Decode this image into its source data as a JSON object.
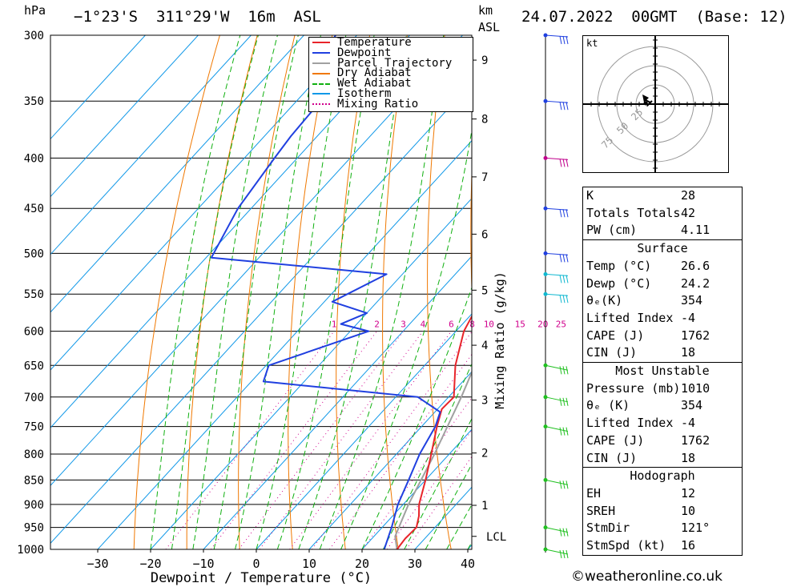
{
  "header": {
    "unit_hpa": "hPa",
    "location": "−1°23'S  311°29'W  16m  ASL",
    "unit_km": "km",
    "unit_asl": "ASL",
    "datetime": "24.07.2022  00GMT  (Base: 12)"
  },
  "chart_data": {
    "type": "skewt",
    "pressure_levels": [
      300,
      350,
      400,
      450,
      500,
      550,
      600,
      650,
      700,
      750,
      800,
      850,
      900,
      950,
      1000
    ],
    "pressure_range": [
      300,
      1000
    ],
    "temp_range_at_bottom": [
      -40,
      40
    ],
    "x_ticks": [
      -30,
      -20,
      -10,
      0,
      10,
      20,
      30,
      40
    ],
    "xlabel": "Dewpoint / Temperature (°C)",
    "km_ticks": [
      {
        "km": 1,
        "p": 902
      },
      {
        "km": 2,
        "p": 798
      },
      {
        "km": 3,
        "p": 705
      },
      {
        "km": 4,
        "p": 620
      },
      {
        "km": 5,
        "p": 545
      },
      {
        "km": 6,
        "p": 478
      },
      {
        "km": 7,
        "p": 418
      },
      {
        "km": 8,
        "p": 365
      },
      {
        "km": 9,
        "p": 318
      }
    ],
    "lcl_label": "LCL",
    "lcl_pressure": 970,
    "mixing_ratio_label": "Mixing Ratio (g/kg)",
    "mixing_ratios": [
      1,
      2,
      3,
      4,
      6,
      8,
      10,
      15,
      20,
      25
    ],
    "legend": [
      "Temperature",
      "Dewpoint",
      "Parcel Trajectory",
      "Dry Adiabat",
      "Wet Adiabat",
      "Isotherm",
      "Mixing Ratio"
    ],
    "colors": {
      "temperature": "#e8242a",
      "dewpoint": "#2040e0",
      "parcel": "#a0a0a0",
      "dry_adiabat": "#f07800",
      "wet_adiabat": "#10b010",
      "isotherm": "#1098e8",
      "mixing_ratio": "#d0008c"
    },
    "temperature": [
      {
        "p": 1000,
        "t": 26.6
      },
      {
        "p": 975,
        "t": 26.3
      },
      {
        "p": 950,
        "t": 26.5
      },
      {
        "p": 925,
        "t": 25.0
      },
      {
        "p": 900,
        "t": 23.0
      },
      {
        "p": 850,
        "t": 20.0
      },
      {
        "p": 800,
        "t": 16.6
      },
      {
        "p": 750,
        "t": 12.9
      },
      {
        "p": 720,
        "t": 10.8
      },
      {
        "p": 700,
        "t": 11.0
      },
      {
        "p": 650,
        "t": 5.8
      },
      {
        "p": 600,
        "t": 1.5
      },
      {
        "p": 575,
        "t": 0.2
      },
      {
        "p": 550,
        "t": -2.1
      },
      {
        "p": 525,
        "t": -5.8
      },
      {
        "p": 505,
        "t": -6.5
      },
      {
        "p": 500,
        "t": -7.0
      },
      {
        "p": 450,
        "t": -11.0
      },
      {
        "p": 400,
        "t": -19.2
      },
      {
        "p": 380,
        "t": -22.8
      },
      {
        "p": 360,
        "t": -23.6
      }
    ],
    "dewpoint": [
      {
        "p": 1000,
        "t": 24.2
      },
      {
        "p": 950,
        "t": 21.8
      },
      {
        "p": 900,
        "t": 19.0
      },
      {
        "p": 850,
        "t": 16.8
      },
      {
        "p": 800,
        "t": 14.4
      },
      {
        "p": 750,
        "t": 12.6
      },
      {
        "p": 725,
        "t": 11.0
      },
      {
        "p": 700,
        "t": 4.2
      },
      {
        "p": 675,
        "t": -27.7
      },
      {
        "p": 650,
        "t": -29.5
      },
      {
        "p": 600,
        "t": -16.5
      },
      {
        "p": 590,
        "t": -23.0
      },
      {
        "p": 575,
        "t": -20.0
      },
      {
        "p": 560,
        "t": -28.5
      },
      {
        "p": 525,
        "t": -23.0
      },
      {
        "p": 505,
        "t": -59.0
      },
      {
        "p": 450,
        "t": -62.5
      },
      {
        "p": 400,
        "t": -64.3
      },
      {
        "p": 380,
        "t": -65.0
      },
      {
        "p": 355,
        "t": -65.4
      },
      {
        "p": 330,
        "t": -69.0
      },
      {
        "p": 320,
        "t": -72.4
      },
      {
        "p": 300,
        "t": -74.0
      }
    ],
    "parcel": [
      {
        "p": 1000,
        "t": 26.6
      },
      {
        "p": 970,
        "t": 24.0
      },
      {
        "p": 900,
        "t": 21.0
      },
      {
        "p": 800,
        "t": 17.2
      },
      {
        "p": 700,
        "t": 12.4
      },
      {
        "p": 600,
        "t": 6.3
      },
      {
        "p": 500,
        "t": -2.1
      },
      {
        "p": 450,
        "t": -7.8
      },
      {
        "p": 400,
        "t": -14.8
      },
      {
        "p": 380,
        "t": -18.5
      },
      {
        "p": 360,
        "t": -22.5
      }
    ],
    "wind_levels": [
      300,
      350,
      400,
      450,
      500,
      525,
      550,
      650,
      700,
      750,
      850,
      950,
      1000
    ]
  },
  "hodograph": {
    "unit": "kt",
    "ring_labels": [
      "25",
      "50",
      "75"
    ]
  },
  "indices": {
    "k_label": "K",
    "k": "28",
    "tt_label": "Totals Totals",
    "tt": "42",
    "pw_label": "PW (cm)",
    "pw": "4.11"
  },
  "surface": {
    "title": "Surface",
    "temp_label": "Temp (°C)",
    "temp": "26.6",
    "dewp_label": "Dewp (°C)",
    "dewp": "24.2",
    "theta_label": "θₑ(K)",
    "theta": "354",
    "li_label": "Lifted Index",
    "li": "-4",
    "cape_label": "CAPE (J)",
    "cape": "1762",
    "cin_label": "CIN (J)",
    "cin": "18"
  },
  "most_unstable": {
    "title": "Most Unstable",
    "pressure_label": "Pressure (mb)",
    "pressure": "1010",
    "theta_label": "θₑ (K)",
    "theta": "354",
    "li_label": "Lifted Index",
    "li": "-4",
    "cape_label": "CAPE (J)",
    "cape": "1762",
    "cin_label": "CIN (J)",
    "cin": "18"
  },
  "hodograph_params": {
    "title": "Hodograph",
    "eh_label": "EH",
    "eh": "12",
    "sreh_label": "SREH",
    "sreh": "10",
    "stmdir_label": "StmDir",
    "stmdir": "121°",
    "stmspd_label": "StmSpd (kt)",
    "stmspd": "16"
  },
  "footer": {
    "copyright": "©weatheronline.co.uk"
  }
}
